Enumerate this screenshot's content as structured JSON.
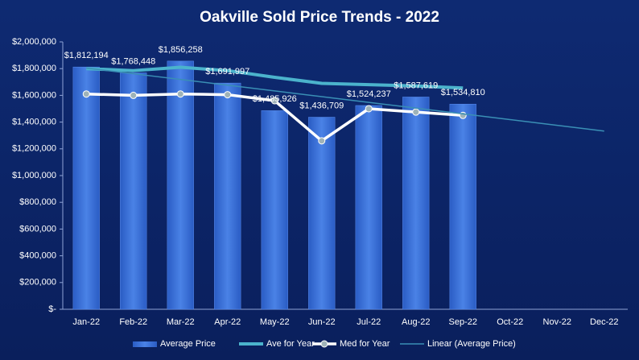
{
  "chart_data": {
    "type": "bar",
    "title": "Oakville  Sold Price Trends  - 2022",
    "categories": [
      "Jan-22",
      "Feb-22",
      "Mar-22",
      "Apr-22",
      "May-22",
      "Jun-22",
      "Jul-22",
      "Aug-22",
      "Sep-22",
      "Oct-22",
      "Nov-22",
      "Dec-22"
    ],
    "series": [
      {
        "name": "Average Price",
        "type": "bar",
        "color": "#3d74dc",
        "values": [
          1812194,
          1768448,
          1856258,
          1691997,
          1485926,
          1436709,
          1524237,
          1587619,
          1534810,
          null,
          null,
          null
        ],
        "value_labels": [
          "$1,812,194",
          "$1,768,448",
          "$1,856,258",
          "$1,691,997",
          "$1,485,926",
          "$1,436,709",
          "$1,524,237",
          "$1,587,619",
          "$1,534,810",
          null,
          null,
          null
        ]
      },
      {
        "name": "Ave for Year",
        "type": "line",
        "color": "#4bb3cc",
        "values": [
          1800000,
          1785000,
          1810000,
          1785000,
          1735000,
          1690000,
          1680000,
          1670000,
          1655000,
          null,
          null,
          null
        ]
      },
      {
        "name": "Med for Year",
        "type": "line",
        "color": "#ffffff",
        "marker": true,
        "values": [
          1610000,
          1600000,
          1610000,
          1605000,
          1560000,
          1260000,
          1500000,
          1475000,
          1450000,
          null,
          null,
          null
        ]
      },
      {
        "name": "Linear (Average Price)",
        "type": "line",
        "color": "#3a8fb5",
        "values": [
          1804557,
          1761701,
          1718845,
          1675989,
          1633133,
          1590277,
          1547421,
          1504565,
          1461709,
          1418853,
          1375997,
          1333141
        ]
      }
    ],
    "ylim": [
      0,
      2000000
    ],
    "yticks": [
      {
        "value": 0,
        "label": "$-"
      },
      {
        "value": 200000,
        "label": "$200,000"
      },
      {
        "value": 400000,
        "label": "$400,000"
      },
      {
        "value": 600000,
        "label": "$600,000"
      },
      {
        "value": 800000,
        "label": "$800,000"
      },
      {
        "value": 1000000,
        "label": "$1,000,000"
      },
      {
        "value": 1200000,
        "label": "$1,200,000"
      },
      {
        "value": 1400000,
        "label": "$1,400,000"
      },
      {
        "value": 1600000,
        "label": "$1,600,000"
      },
      {
        "value": 1800000,
        "label": "$1,800,000"
      },
      {
        "value": 2000000,
        "label": "$2,000,000"
      }
    ],
    "grid": false,
    "legend": "bottom"
  }
}
